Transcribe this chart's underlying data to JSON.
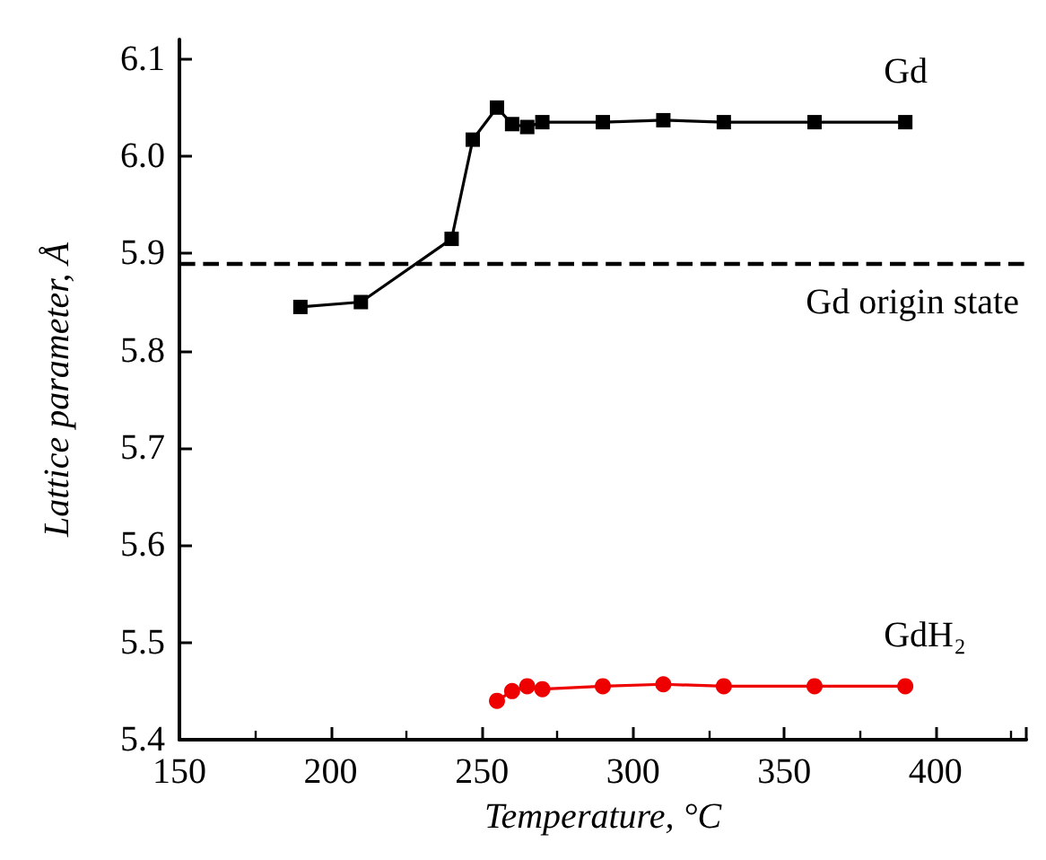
{
  "chart_data": {
    "type": "line",
    "xlabel": "Temperature, °C",
    "ylabel": "Lattice parameter, Å",
    "xlim": [
      150,
      430
    ],
    "xticks": [
      150,
      200,
      250,
      300,
      350,
      400
    ],
    "ylim": [
      5.4,
      6.12
    ],
    "yticks": [
      5.4,
      5.5,
      5.6,
      5.7,
      5.8,
      5.9,
      {
        "value": 6,
        "label": "6.0"
      },
      6.1
    ],
    "grid": false,
    "legend": false,
    "series": [
      {
        "name": "Gd",
        "color": "#000000",
        "marker": "square",
        "x": [
          190,
          210,
          240,
          247,
          255,
          260,
          265,
          270,
          290,
          310,
          330,
          360,
          390
        ],
        "values": [
          5.845,
          5.85,
          5.915,
          6.017,
          6.05,
          6.033,
          6.03,
          6.035,
          6.035,
          6.037,
          6.035,
          6.035,
          6.035
        ]
      },
      {
        "name": "GdH₂",
        "color": "#ee0000",
        "marker": "circle",
        "x": [
          255,
          260,
          265,
          270,
          290,
          310,
          330,
          360,
          390
        ],
        "values": [
          5.44,
          5.45,
          5.455,
          5.452,
          5.455,
          5.457,
          5.455,
          5.455,
          5.455
        ]
      }
    ],
    "ref_lines": [
      {
        "axis": "y",
        "value": 5.89,
        "label": "Gd origin state",
        "color": "#000000",
        "line_style": "dashed"
      }
    ]
  }
}
